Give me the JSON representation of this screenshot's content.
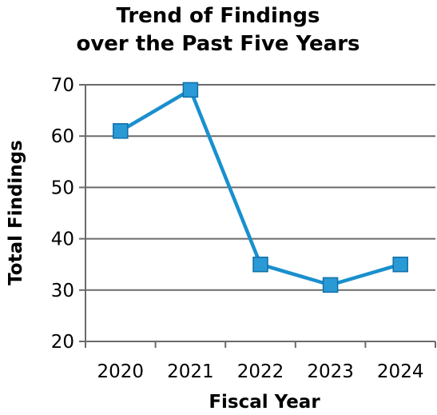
{
  "chart_data": {
    "type": "line",
    "title_lines": [
      "Trend of Findings",
      "over the Past Five Years"
    ],
    "xlabel": "Fiscal Year",
    "ylabel": "Total Findings",
    "categories": [
      "2020",
      "2021",
      "2022",
      "2023",
      "2024"
    ],
    "series": [
      {
        "values": [
          61,
          69,
          35,
          31,
          35
        ],
        "color": "#1a8fce",
        "marker_fill": "#2a9ad6"
      }
    ],
    "ylim": [
      20,
      70
    ],
    "yticks": [
      20,
      30,
      40,
      50,
      60,
      70
    ],
    "grid": true,
    "legend": "none"
  }
}
